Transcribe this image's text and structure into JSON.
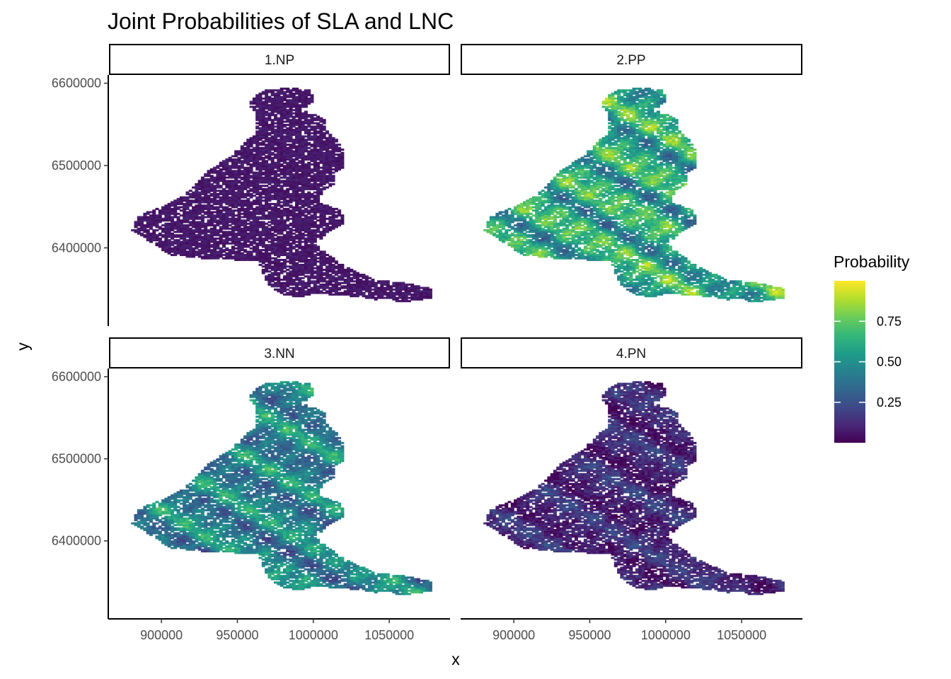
{
  "chart_data": {
    "type": "heatmap",
    "title": "Joint Probabilities of SLA and LNC",
    "xlabel": "x",
    "ylabel": "y",
    "xlim": [
      865000,
      1090000
    ],
    "ylim": [
      6305000,
      6610000
    ],
    "x_ticks": [
      900000,
      950000,
      1000000,
      1050000
    ],
    "x_tick_labels": [
      "900000",
      "950000",
      "1000000",
      "1050000"
    ],
    "y_ticks": [
      6400000,
      6500000,
      6600000
    ],
    "y_tick_labels": [
      "6400000",
      "6500000",
      "6600000"
    ],
    "panels": [
      {
        "label": "1.NP",
        "mean_probability": 0.05
      },
      {
        "label": "2.PP",
        "mean_probability": 0.6
      },
      {
        "label": "3.NN",
        "mean_probability": 0.45
      },
      {
        "label": "4.PN",
        "mean_probability": 0.12
      }
    ],
    "legend": {
      "title": "Probability",
      "range": [
        0,
        1
      ],
      "ticks": [
        0.25,
        0.5,
        0.75
      ],
      "tick_labels": [
        "0.25",
        "0.50",
        "0.75"
      ],
      "placement": "right",
      "palette": "viridis",
      "colors": [
        "#440154",
        "#482878",
        "#3e4a89",
        "#31688e",
        "#26828e",
        "#1f9e89",
        "#35b779",
        "#6dcd59",
        "#b4de2c",
        "#fde725"
      ]
    }
  }
}
